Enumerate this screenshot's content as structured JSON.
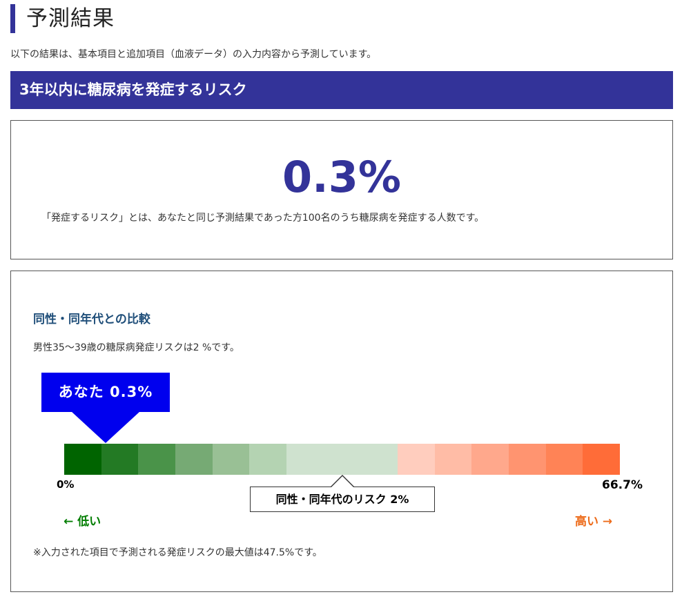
{
  "page": {
    "title": "予測結果",
    "intro": "以下の結果は、基本項目と追加項目（血液データ）の入力内容から予測しています。"
  },
  "risk_banner": {
    "title": "3年以内に糖尿病を発症するリスク"
  },
  "result": {
    "value": "0.3%",
    "definition": "「発症するリスク」とは、あなたと同じ予測結果であった方100名のうち糖尿病を発症する人数です。"
  },
  "comparison": {
    "heading": "同性・同年代との比較",
    "text": "男性35〜39歳の糖尿病発症リスクは2 %です。",
    "you_label": "あなた 0.3%",
    "you_risk": 0.3,
    "peer_label": "同性・同年代のリスク 2%",
    "peer_risk": 2,
    "scale_min": "0%",
    "scale_max": "66.7%",
    "low_label": "← 低い",
    "high_label": "高い →",
    "scale_colors": [
      "#006400",
      "#237a24",
      "#4a9349",
      "#76aa74",
      "#99c095",
      "#b4d3b2",
      "#cfe2cf",
      "#cfe2cf",
      "#cfe2cf",
      "#ffcdbe",
      "#ffbca6",
      "#ffa88c",
      "#ff9470",
      "#ff8356",
      "#ff6c38"
    ],
    "note": "※入力された項目で予測される発症リスクの最大値は47.5%です。"
  },
  "colors": {
    "accent": "#333399",
    "you_marker": "#0000ee",
    "low": "#007d00",
    "high": "#ed6b1a"
  }
}
